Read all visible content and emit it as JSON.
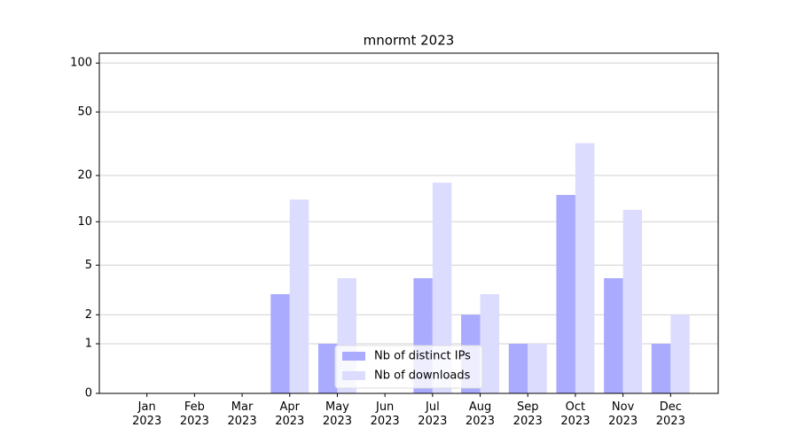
{
  "chart_data": {
    "type": "bar",
    "title": "mnormt 2023",
    "categories": [
      "Jan 2023",
      "Feb 2023",
      "Mar 2023",
      "Apr 2023",
      "May 2023",
      "Jun 2023",
      "Jul 2023",
      "Aug 2023",
      "Sep 2023",
      "Oct 2023",
      "Nov 2023",
      "Dec 2023"
    ],
    "series": [
      {
        "name": "Nb of distinct IPs",
        "color": "#aaaaff",
        "values": [
          0,
          0,
          0,
          3,
          1,
          0,
          4,
          2,
          1,
          15,
          4,
          1
        ]
      },
      {
        "name": "Nb of downloads",
        "color": "#dcdcff",
        "values": [
          0,
          0,
          0,
          14,
          4,
          0,
          18,
          3,
          1,
          32,
          12,
          2
        ]
      }
    ],
    "yscale": "log1p",
    "ylim": [
      0,
      115
    ],
    "yticks": [
      0,
      1,
      2,
      5,
      10,
      20,
      50,
      100
    ],
    "grid": true,
    "legend": "lower center"
  }
}
